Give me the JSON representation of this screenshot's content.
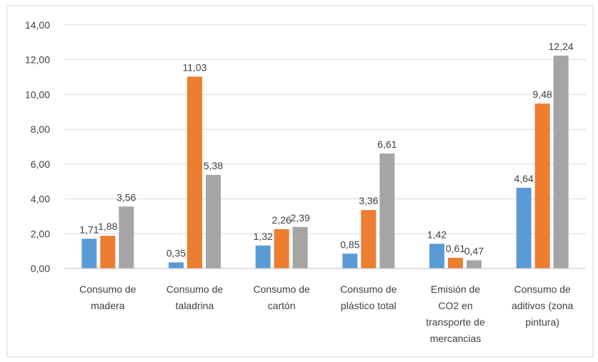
{
  "chart_data": {
    "type": "bar",
    "categories": [
      "Consumo de madera",
      "Consumo de taladrina",
      "Consumo de cartón",
      "Consumo de plástico total",
      "Emisión de CO2 en transporte de mercancias",
      "Consumo de aditivos (zona pintura)"
    ],
    "series": [
      {
        "color": "#5b9bd5",
        "values": [
          1.71,
          0.35,
          1.32,
          0.85,
          1.42,
          4.64
        ],
        "value_labels": [
          "1,71",
          "0,35",
          "1,32",
          "0,85",
          "1,42",
          "4,64"
        ]
      },
      {
        "color": "#ed7d31",
        "values": [
          1.88,
          11.03,
          2.26,
          3.36,
          0.61,
          9.48
        ],
        "value_labels": [
          "1,88",
          "11,03",
          "2,26",
          "3,36",
          "0,61",
          "9,48"
        ]
      },
      {
        "color": "#a5a5a5",
        "values": [
          3.56,
          5.38,
          2.39,
          6.61,
          0.47,
          12.24
        ],
        "value_labels": [
          "3,56",
          "5,38",
          "2,39",
          "6,61",
          "0,47",
          "12,24"
        ]
      }
    ],
    "ylim": [
      0,
      14
    ],
    "yticks": [
      {
        "value": 0,
        "label": "0,00"
      },
      {
        "value": 2,
        "label": "2,00"
      },
      {
        "value": 4,
        "label": "4,00"
      },
      {
        "value": 6,
        "label": "6,00"
      },
      {
        "value": 8,
        "label": "8,00"
      },
      {
        "value": 10,
        "label": "10,00"
      },
      {
        "value": 12,
        "label": "12,00"
      },
      {
        "value": 14,
        "label": "14,00"
      }
    ],
    "grid": true
  }
}
